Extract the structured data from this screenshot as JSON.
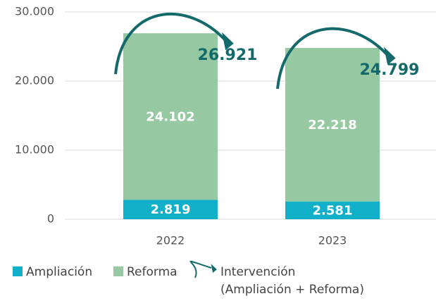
{
  "chart_data": {
    "type": "stacked-bar",
    "categories": [
      "2022",
      "2023"
    ],
    "series": [
      {
        "name": "Ampliación",
        "color": "#12b0c8",
        "values": [
          2819,
          2581
        ],
        "value_labels": [
          "2.819",
          "2.581"
        ]
      },
      {
        "name": "Reforma",
        "color": "#96c9a2",
        "values": [
          24102,
          22218
        ],
        "value_labels": [
          "24.102",
          "22.218"
        ]
      }
    ],
    "totals": {
      "name": "Intervención",
      "note": "(Ampliación + Reforma)",
      "color": "#14696b",
      "values": [
        26921,
        24799
      ],
      "value_labels": [
        "26.921",
        "24.799"
      ]
    },
    "ylim": [
      0,
      30000
    ],
    "yticks": [
      0,
      {
        "value": 10000,
        "label": "10.000"
      },
      {
        "value": 20000,
        "label": "20.000"
      },
      {
        "value": 30000,
        "label": "30.000"
      }
    ],
    "grid": true
  }
}
